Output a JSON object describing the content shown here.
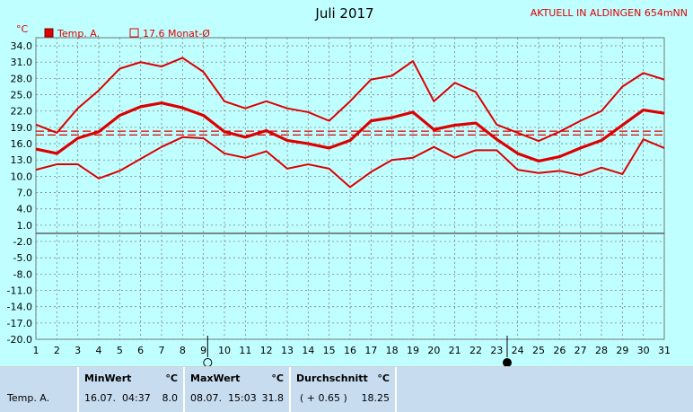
{
  "header": {
    "title": "Juli 2017",
    "station": "AKTUELL IN ALDINGEN 654mNN",
    "unit": "°C"
  },
  "legend": [
    {
      "label": "Temp. A.",
      "color": "#dd0000",
      "style": "filled"
    },
    {
      "label": "17.6 Monat-Ø",
      "color": "#dd0000",
      "style": "outline"
    }
  ],
  "colors": {
    "background": "#c0ffff",
    "series": "#dd0000",
    "grid": "#808080"
  },
  "moon_icons": [
    {
      "day": 9.2,
      "name": "full-moon-icon"
    },
    {
      "day": 23.5,
      "name": "new-moon-icon"
    }
  ],
  "chart_data": {
    "type": "line",
    "title": "Juli 2017",
    "ylabel": "°C",
    "x": [
      1,
      2,
      3,
      4,
      5,
      6,
      7,
      8,
      9,
      10,
      11,
      12,
      13,
      14,
      15,
      16,
      17,
      18,
      19,
      20,
      21,
      22,
      23,
      24,
      25,
      26,
      27,
      28,
      29,
      30,
      31
    ],
    "xlim": [
      1,
      31
    ],
    "ylim": [
      -20,
      35.5
    ],
    "yticks": [
      34.0,
      31.0,
      28.0,
      25.0,
      22.0,
      19.0,
      16.0,
      13.0,
      10.0,
      7.0,
      4.0,
      1.0,
      -2.0,
      -5.0,
      -8.0,
      -11.0,
      -14.0,
      -17.0,
      -20.0
    ],
    "grid": true,
    "series": [
      {
        "role": "max",
        "values": [
          19.5,
          18.0,
          22.5,
          25.8,
          29.8,
          31.0,
          30.2,
          31.8,
          29.2,
          23.8,
          22.5,
          23.8,
          22.5,
          21.8,
          20.2,
          23.8,
          27.8,
          28.5,
          31.2,
          23.8,
          27.2,
          25.5,
          19.5,
          18.0,
          16.5,
          18.2,
          20.2,
          22.0,
          26.5,
          29.0,
          27.8
        ]
      },
      {
        "role": "avg",
        "values": [
          15.0,
          14.2,
          17.0,
          18.2,
          21.2,
          22.8,
          23.5,
          22.6,
          21.2,
          18.2,
          17.2,
          18.4,
          16.6,
          16.0,
          15.2,
          16.6,
          20.2,
          20.8,
          21.8,
          18.6,
          19.4,
          19.8,
          16.8,
          14.2,
          12.8,
          13.6,
          15.2,
          16.6,
          19.4,
          22.2,
          21.6
        ]
      },
      {
        "role": "min",
        "values": [
          11.2,
          12.2,
          12.2,
          9.6,
          11.0,
          13.2,
          15.4,
          17.2,
          17.0,
          14.2,
          13.4,
          14.6,
          11.4,
          12.2,
          11.4,
          8.0,
          10.8,
          13.0,
          13.4,
          15.4,
          13.4,
          14.8,
          14.8,
          11.2,
          10.6,
          11.0,
          10.2,
          11.6,
          10.4,
          16.8,
          15.2
        ]
      }
    ],
    "reference_lines": [
      {
        "value": 17.6,
        "style": "dashed",
        "label": "17.6 Monat-Ø"
      },
      {
        "value": 18.3,
        "style": "dashed"
      }
    ]
  },
  "stats": {
    "row_label": "Temp. A.",
    "min": {
      "header": "MinWert",
      "unit": "°C",
      "date": "16.07.",
      "time": "04:37",
      "value": "8.0"
    },
    "max": {
      "header": "MaxWert",
      "unit": "°C",
      "date": "08.07.",
      "time": "15:03",
      "value": "31.8"
    },
    "avg": {
      "header": "Durchschnitt",
      "unit": "°C",
      "deviation": "( + 0.65 )",
      "value": "18.25"
    }
  }
}
